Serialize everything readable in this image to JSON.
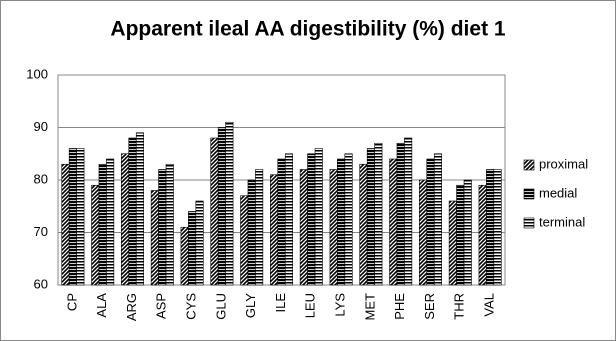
{
  "chart_data": {
    "type": "bar",
    "title": "Apparent ileal AA digestibility (%) diet 1",
    "categories": [
      "CP",
      "ALA",
      "ARG",
      "ASP",
      "CYS",
      "GLU",
      "GLY",
      "ILE",
      "LEU",
      "LYS",
      "MET",
      "PHE",
      "SER",
      "THR",
      "VAL"
    ],
    "series": [
      {
        "name": "proximal",
        "color": "#000000",
        "hatch": "diagonal",
        "values": [
          83,
          79,
          85,
          78,
          71,
          88,
          77,
          81,
          82,
          82,
          83,
          84,
          80,
          76,
          79
        ]
      },
      {
        "name": "medial",
        "color": "#000000",
        "hatch": "dense",
        "values": [
          86,
          83,
          88,
          82,
          74,
          90,
          80,
          84,
          85,
          84,
          86,
          87,
          84,
          79,
          82
        ]
      },
      {
        "name": "terminal",
        "color": "#000000",
        "hatch": "horizontal",
        "values": [
          86,
          84,
          89,
          83,
          76,
          91,
          82,
          85,
          86,
          85,
          87,
          88,
          85,
          80,
          82
        ]
      }
    ],
    "ylim": [
      60,
      100
    ],
    "yticks": [
      60,
      70,
      80,
      90,
      100
    ],
    "grid": true,
    "legend": "right"
  }
}
